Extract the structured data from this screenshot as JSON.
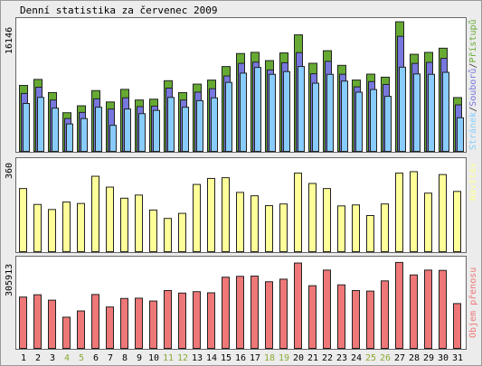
{
  "chart_data": {
    "type": "bar",
    "title": "Denní statistika za červenec 2009",
    "days": [
      1,
      2,
      3,
      4,
      5,
      6,
      7,
      8,
      9,
      10,
      11,
      12,
      13,
      14,
      15,
      16,
      17,
      18,
      19,
      20,
      21,
      22,
      23,
      24,
      25,
      26,
      27,
      28,
      29,
      30,
      31
    ],
    "weekend_days": [
      4,
      5,
      11,
      12,
      18,
      19,
      25,
      26
    ],
    "colors": {
      "pristupu": "#66aa33",
      "souboru": "#7777dd",
      "stranek": "#88ccff",
      "navstev": "#ffff99",
      "objem": "#ee7777",
      "weekend_label": "#88aa33"
    },
    "panels": [
      {
        "name": "hits",
        "ymax_label": "16146",
        "ymax": 16146,
        "legend": [
          {
            "text": "Stránek",
            "color": "#88ccff"
          },
          {
            "text": "/",
            "color": "#333333"
          },
          {
            "text": "Souborů",
            "color": "#7777dd"
          },
          {
            "text": "/",
            "color": "#333333"
          },
          {
            "text": "Přístupů",
            "color": "#66aa33"
          }
        ],
        "series": [
          {
            "name": "Přístupů",
            "values": [
              8126,
              8865,
              7241,
              4763,
              5616,
              7487,
              6089,
              7641,
              6330,
              6430,
              8705,
              7240,
              8286,
              8782,
              10452,
              12055,
              12201,
              11180,
              12132,
              14356,
              10856,
              12401,
              10599,
              8790,
              9516,
              9143,
              15968,
              11963,
              12195,
              12712,
              6629
            ]
          },
          {
            "name": "Souborů",
            "values": [
              7137,
              7906,
              6326,
              4047,
              4802,
              6471,
              5216,
              6600,
              5515,
              5574,
              7793,
              6327,
              7302,
              7725,
              9289,
              10846,
              10996,
              10036,
              10919,
              12164,
              9566,
              11096,
              9505,
              7946,
              8597,
              8241,
              14178,
              10837,
              10968,
              11460,
              5729
            ]
          },
          {
            "name": "Stránek",
            "values": [
              5900,
              6650,
              5330,
              3380,
              4040,
              5440,
              3210,
              5220,
              4650,
              5050,
              6650,
              5440,
              6250,
              6590,
              8500,
              9640,
              10340,
              9490,
              9830,
              10460,
              8400,
              9490,
              8660,
              7290,
              7620,
              6780,
              10370,
              9540,
              9490,
              9740,
              4140
            ]
          }
        ]
      },
      {
        "name": "visits",
        "ymax_label": "360",
        "ymax": 360,
        "legend": [
          {
            "text": "Návštěv",
            "color": "#ffff99"
          }
        ],
        "series": [
          {
            "name": "Návštěv",
            "values": [
              262,
              196,
              175,
              206,
              200,
              313,
              268,
              222,
              235,
              173,
              138,
              159,
              279,
              304,
              307,
              246,
              232,
              191,
              198,
              326,
              283,
              262,
              190,
              194,
              150,
              198,
              326,
              332,
              243,
              320,
              250
            ]
          }
        ]
      },
      {
        "name": "volume",
        "ymax_label": "305913",
        "ymax": 305913,
        "legend": [
          {
            "text": "Objem přenosu",
            "color": "#ee7777"
          }
        ],
        "series": [
          {
            "name": "Objem přenosu",
            "values": [
              181000,
              189000,
              170000,
              110000,
              132000,
              190000,
              146000,
              176000,
              177000,
              167000,
              204000,
              195000,
              200000,
              196000,
              251000,
              254000,
              255000,
              235000,
              244000,
              301000,
              221000,
              276000,
              224000,
              204000,
              202000,
              238000,
              303000,
              259000,
              276000,
              275000,
              158000
            ]
          }
        ]
      }
    ]
  }
}
